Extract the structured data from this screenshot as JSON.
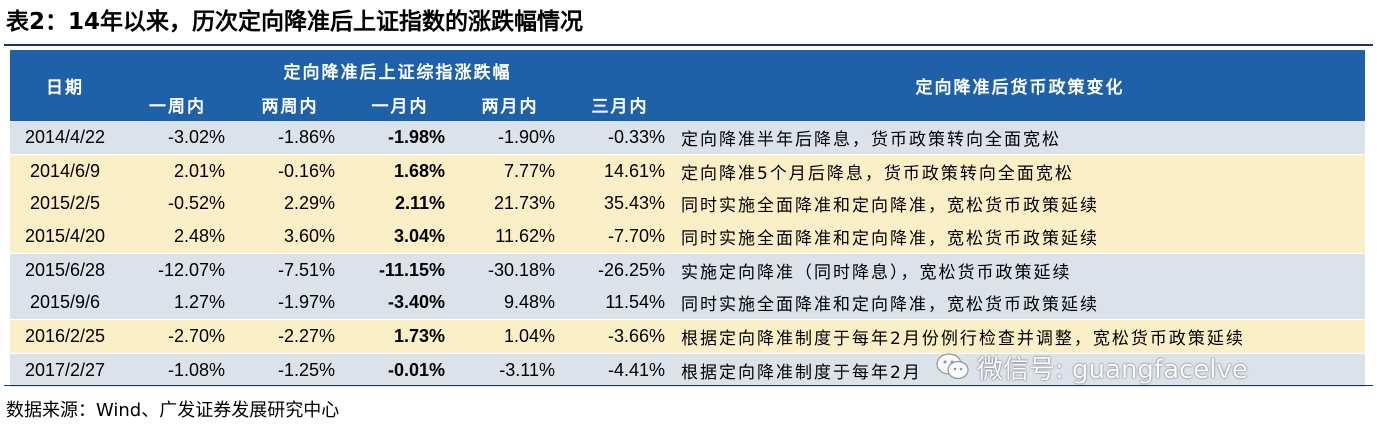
{
  "title": "表2：14年以来，历次定向降准后上证指数的涨跌幅情况",
  "table": {
    "header": {
      "date": "日期",
      "group": "定向降准后上证综指涨跌幅",
      "periods": [
        "一周内",
        "两周内",
        "一月内",
        "两月内",
        "三月内"
      ],
      "policy": "定向降准后货币政策变化"
    },
    "rows": [
      {
        "date": "2014/4/22",
        "w1": "-3.02%",
        "w2": "-1.86%",
        "m1": "-1.98%",
        "m2": "-1.90%",
        "m3": "-0.33%",
        "policy": "定向降准半年后降息，货币政策转向全面宽松",
        "shade": "blue"
      },
      {
        "date": "2014/6/9",
        "w1": "2.01%",
        "w2": "-0.16%",
        "m1": "1.68%",
        "m2": "7.77%",
        "m3": "14.61%",
        "policy": "定向降准5个月后降息，货币政策转向全面宽松",
        "shade": "yellow"
      },
      {
        "date": "2015/2/5",
        "w1": "-0.52%",
        "w2": "2.29%",
        "m1": "2.11%",
        "m2": "21.73%",
        "m3": "35.43%",
        "policy": "同时实施全面降准和定向降准，宽松货币政策延续",
        "shade": "yellow"
      },
      {
        "date": "2015/4/20",
        "w1": "2.48%",
        "w2": "3.60%",
        "m1": "3.04%",
        "m2": "11.62%",
        "m3": "-7.70%",
        "policy": "同时实施全面降准和定向降准，宽松货币政策延续",
        "shade": "yellow"
      },
      {
        "date": "2015/6/28",
        "w1": "-12.07%",
        "w2": "-7.51%",
        "m1": "-11.15%",
        "m2": "-30.18%",
        "m3": "-26.25%",
        "policy": "实施定向降准（同时降息），宽松货币政策延续",
        "shade": "blue"
      },
      {
        "date": "2015/9/6",
        "w1": "1.27%",
        "w2": "-1.97%",
        "m1": "-3.40%",
        "m2": "9.48%",
        "m3": "11.54%",
        "policy": "同时实施全面降准和定向降准，宽松货币政策延续",
        "shade": "blue"
      },
      {
        "date": "2016/2/25",
        "w1": "-2.70%",
        "w2": "-2.27%",
        "m1": "1.73%",
        "m2": "1.04%",
        "m3": "-3.66%",
        "policy": "根据定向降准制度于每年2月份例行检查并调整，宽松货币政策延续",
        "shade": "yellow"
      },
      {
        "date": "2017/2/27",
        "w1": "-1.08%",
        "w2": "-1.25%",
        "m1": "-0.01%",
        "m2": "-3.11%",
        "m3": "-4.41%",
        "policy": "根据定向降准制度于每年2月",
        "shade": "blue"
      }
    ]
  },
  "source": "数据来源：Wind、广发证券发展研究中心",
  "watermark": "微信号: guangfacelve",
  "colors": {
    "header": "#1f61a8",
    "row_blue": "#dbe2e9",
    "row_yellow": "#fbefc7",
    "rule": "#17375e"
  },
  "icons": {
    "watermark_icon": "wechat-icon"
  }
}
